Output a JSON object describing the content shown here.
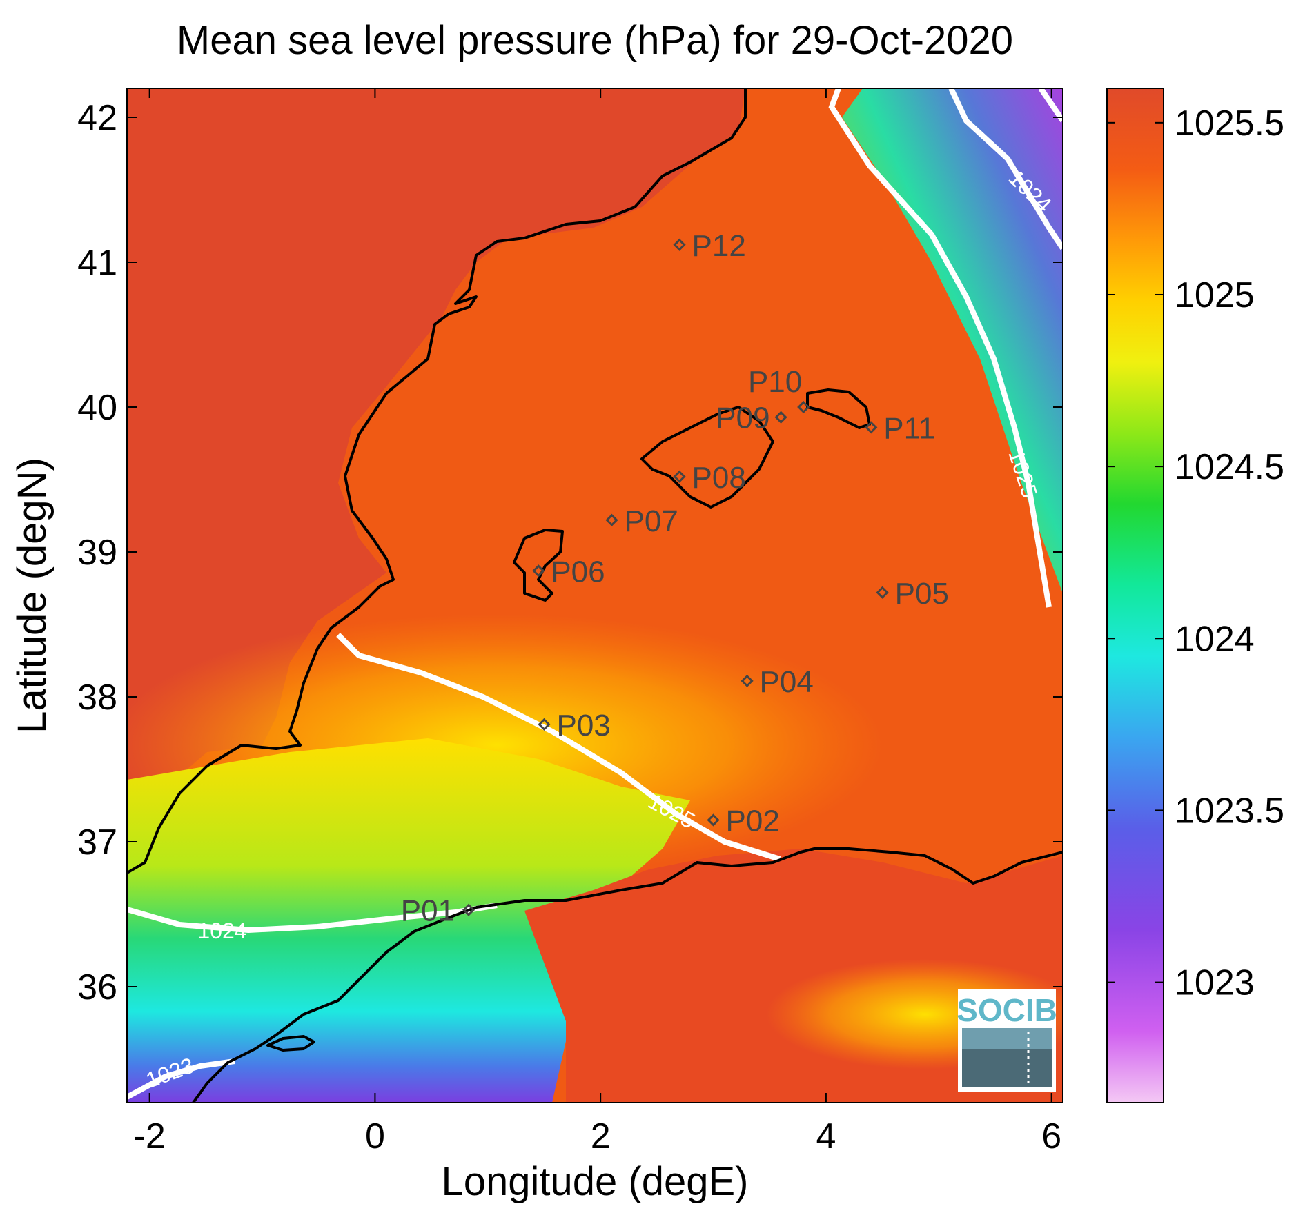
{
  "title": "Mean sea level pressure (hPa) for 29-Oct-2020",
  "xlabel": "Longitude (degE)",
  "ylabel": "Latitude (degN)",
  "map": {
    "lon_range": [
      -2.2,
      6.1
    ],
    "lat_range": [
      35.2,
      42.2
    ],
    "x_ticks": [
      "-2",
      "0",
      "2",
      "4",
      "6"
    ],
    "y_ticks": [
      "42",
      "41",
      "40",
      "39",
      "38",
      "37",
      "36"
    ],
    "field": "mean sea level pressure",
    "contour_color": "#ffffff",
    "coastline_color": "#000000"
  },
  "colorbar": {
    "range": [
      1022.65,
      1025.6
    ],
    "ticks": [
      "1025.5",
      "1025",
      "1024.5",
      "1024",
      "1023.5",
      "1023"
    ],
    "colormap": [
      "#f0b0f0",
      "#c650f0",
      "#7a3fe0",
      "#4a7ae8",
      "#3ec8f0",
      "#1fefc0",
      "#22d860",
      "#6fe018",
      "#d8f010",
      "#ffe800",
      "#ffb000",
      "#ff7a10",
      "#f05018",
      "#e04a2a"
    ]
  },
  "contours": [
    {
      "label": "1025",
      "label_color": "#ffffff"
    },
    {
      "label": "1025",
      "label_color": "#ffffff"
    },
    {
      "label": "1024",
      "label_color": "#ffffff"
    },
    {
      "label": "1024",
      "label_color": "#ffffff"
    },
    {
      "label": "1023",
      "label_color": "#ffffff"
    }
  ],
  "stations": [
    {
      "name": "P01",
      "lon": 0.83,
      "lat": 36.53
    },
    {
      "name": "P02",
      "lon": 3.0,
      "lat": 37.15
    },
    {
      "name": "P03",
      "lon": 1.5,
      "lat": 37.81
    },
    {
      "name": "P04",
      "lon": 3.3,
      "lat": 38.11
    },
    {
      "name": "P05",
      "lon": 4.5,
      "lat": 38.72
    },
    {
      "name": "P06",
      "lon": 1.45,
      "lat": 38.87
    },
    {
      "name": "P07",
      "lon": 2.1,
      "lat": 39.22
    },
    {
      "name": "P08",
      "lon": 2.7,
      "lat": 39.52
    },
    {
      "name": "P09",
      "lon": 3.6,
      "lat": 39.93
    },
    {
      "name": "P10",
      "lon": 3.8,
      "lat": 40.0
    },
    {
      "name": "P11",
      "lon": 4.4,
      "lat": 39.86
    },
    {
      "name": "P12",
      "lon": 2.7,
      "lat": 41.12
    }
  ],
  "logo": {
    "text": "SOCIB"
  }
}
